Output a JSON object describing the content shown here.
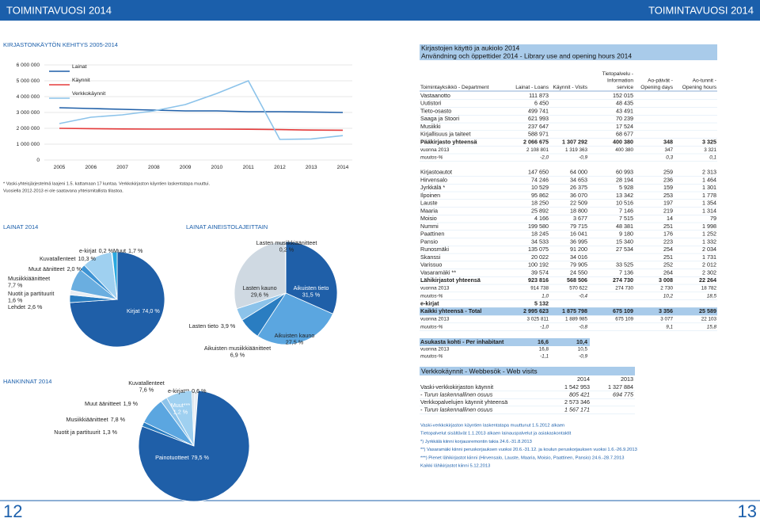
{
  "header": {
    "left": "TOIMINTAVUOSI 2014",
    "right": "TOIMINTAVUOSI 2014"
  },
  "pages": {
    "left": "12",
    "right": "13"
  },
  "chart_data": [
    {
      "type": "line",
      "title": "KIRJASTONKÄYTÖN KEHITYS 2005-2014",
      "categories": [
        "2005",
        "2006",
        "2007",
        "2008",
        "2009",
        "2010",
        "2011",
        "2012",
        "2013",
        "2014"
      ],
      "series": [
        {
          "name": "Lainat",
          "color": "#1f5fa8",
          "values": [
            3300000,
            3250000,
            3200000,
            3150000,
            3100000,
            3100000,
            3050000,
            3050000,
            3030000,
            3000000
          ]
        },
        {
          "name": "Käynnit",
          "color": "#e53b3b",
          "values": [
            2000000,
            1980000,
            1960000,
            1950000,
            1950000,
            1950000,
            1940000,
            1920000,
            1890000,
            1880000
          ]
        },
        {
          "name": "Verkkokäynnit",
          "color": "#8cc3ea",
          "values": [
            2300000,
            2700000,
            2850000,
            3100000,
            3500000,
            4200000,
            5000000,
            1300000,
            1330000,
            1540000
          ]
        }
      ],
      "ylim": [
        0,
        6000000
      ],
      "yticks": [
        0,
        {
          "value": 1000000,
          "label": "1 000 000"
        },
        {
          "value": 2000000,
          "label": "2 000 000"
        },
        {
          "value": 3000000,
          "label": "3 000 000"
        },
        {
          "value": 4000000,
          "label": "4 000 000"
        },
        {
          "value": 5000000,
          "label": "5 000 000"
        },
        {
          "value": 6000000,
          "label": "6 000 000"
        }
      ],
      "grid": true,
      "notes": [
        "* Vaski-yhteisjärjestelmä laajeni 1.5. kattamaan 17 kuntaa. Verkkokirjaston käyntien laskentatapa muuttui.",
        "Vuosiella 2012-2013 ei ole saatavana yhteismitallista tilastoa."
      ]
    },
    {
      "type": "pie",
      "title": "LAINAT 2014",
      "categories": [
        "Kirjat",
        "Lehdet",
        "Nuotit ja partituurit",
        "Musiikkiäänitteet",
        "Muut äänitteet",
        "Kuvatallenteet",
        "e-kirjat",
        "Muut"
      ],
      "values": [
        74.0,
        2.6,
        1.6,
        7.7,
        2.0,
        10.3,
        0.2,
        1.7
      ],
      "value_labels": [
        "74,0 %",
        "2,6 %",
        "1,6 %",
        "7,7 %",
        "2,0 %",
        "10,3 %",
        "0,2 %",
        "1,7 %"
      ],
      "colors": [
        "#1f5fa8",
        "#2a7dc1",
        "#e8eef4",
        "#6aaee0",
        "#3d93d4",
        "#9fd0f0",
        "#d0dce6",
        "#29a8e0"
      ]
    },
    {
      "type": "pie",
      "title": "LAINAT AINEISTOLAJEITTAIN",
      "categories": [
        "Aikuisten tieto",
        "Aikuisten kauno",
        "Aikuisten musiikkiäänitteet",
        "Lasten tieto",
        "Lasten kauno",
        "Lasten musiikkiäänitteet"
      ],
      "values": [
        31.5,
        27.5,
        6.9,
        3.9,
        29.6,
        0.2
      ],
      "value_labels": [
        "31,5 %",
        "27,5 %",
        "6,9 %",
        "3,9 %",
        "29,6 %",
        "0,2 %"
      ],
      "colors": [
        "#1f5fa8",
        "#5ba6e0",
        "#2a7dc1",
        "#8cc3ea",
        "#cfd9e2",
        "#eef2f5"
      ]
    },
    {
      "type": "pie",
      "title": "HANKINNAT 2014",
      "categories": [
        "Muut***",
        "Painotuotteet",
        "Nuotit ja partituurit",
        "Musiikkiäänitteet",
        "Muut äänitteet",
        "Kuvatallenteet",
        "e-kirjat**"
      ],
      "values": [
        1.2,
        79.5,
        1.3,
        7.8,
        1.9,
        7.6,
        0.6
      ],
      "value_labels": [
        "1,2 %",
        "79,5 %",
        "1,3 %",
        "7,8 %",
        "1,9 %",
        "7,6 %",
        "0,6 %"
      ],
      "colors": [
        "#e8eef4",
        "#1f5fa8",
        "#2a7dc1",
        "#5ba6e0",
        "#8cc3ea",
        "#9fd0f0",
        "#cfd9e2"
      ]
    }
  ],
  "table": {
    "title": "Kirjastojen käyttö ja aukiolo 2014",
    "subtitle": "Användning och öppettider 2014 - Library use and opening hours 2014",
    "columns": [
      [
        "Toimintayksikkö - Department"
      ],
      [
        "Lainat - Loans"
      ],
      [
        "Käynnit - Visits"
      ],
      [
        "Tietopalvelu -",
        "Information",
        "service"
      ],
      [
        "Ao-päivät -",
        "Opening days"
      ],
      [
        "Ao-tunnit -",
        "Opening hours"
      ]
    ],
    "rows": [
      [
        "Vastaanotto",
        "111 873",
        null,
        "152 015",
        null,
        null
      ],
      [
        "Uutistori",
        "6 450",
        null,
        "48 435",
        null,
        null
      ],
      [
        "Tieto-osasto",
        "499 741",
        null,
        "43 491",
        null,
        null
      ],
      [
        "Saaga ja Stoori",
        "621 993",
        null,
        "70 239",
        null,
        null
      ],
      [
        "Musiikki",
        "237 647",
        null,
        "17 524",
        null,
        null
      ],
      [
        "Kirjallisuus ja taiteet",
        "588 971",
        null,
        "68 677",
        null,
        null
      ],
      [
        "Pääkirjasto yhteensä",
        "2 066 675",
        "1 307 292",
        "400 380",
        "348",
        "3 325"
      ],
      [
        "vuonna 2013",
        "2 108 801",
        "1 319 363",
        "400 380",
        "347",
        "3 321"
      ],
      [
        "muutos-%",
        "-2,0",
        "-0,9",
        null,
        "0,3",
        "0,1"
      ],
      [
        "Kirjastoautot",
        "147 650",
        "64 000",
        "60 993",
        "259",
        "2 313"
      ],
      [
        "Hirvensalo",
        "74 246",
        "34 653",
        "28 194",
        "236",
        "1 464"
      ],
      [
        "Jyrkkälä *",
        "10 529",
        "26 375",
        "5 928",
        "159",
        "1 301"
      ],
      [
        "Ilpoinen",
        "95 862",
        "36 070",
        "13 342",
        "253",
        "1 778"
      ],
      [
        "Lauste",
        "18 250",
        "22 509",
        "10 516",
        "197",
        "1 354"
      ],
      [
        "Maaria",
        "25 892",
        "18 800",
        "7 146",
        "219",
        "1 314"
      ],
      [
        "Moisio",
        "4 166",
        "3 677",
        "7 515",
        "14",
        "79"
      ],
      [
        "Nummi",
        "199 580",
        "79 715",
        "48 381",
        "251",
        "1 998"
      ],
      [
        "Paattinen",
        "18 245",
        "16 041",
        "9 180",
        "176",
        "1 252"
      ],
      [
        "Pansio",
        "34 533",
        "36 995",
        "15 340",
        "223",
        "1 332"
      ],
      [
        "Runosmäki",
        "135 075",
        "91 200",
        "27 534",
        "254",
        "2 034"
      ],
      [
        "Skanssi",
        "20 022",
        "34 016",
        null,
        "251",
        "1 731"
      ],
      [
        "Varissuo",
        "100 192",
        "79 905",
        "33 525",
        "252",
        "2 012"
      ],
      [
        "Vasaramäki **",
        "39 574",
        "24 550",
        "7 136",
        "264",
        "2 302"
      ],
      [
        "Lähikirjastot yhteensä",
        "923 816",
        "568 506",
        "274 730",
        "3 008",
        "22 264"
      ],
      [
        "vuonna 2013",
        "914 738",
        "570 622",
        "274 730",
        "2 730",
        "18 782"
      ],
      [
        "muutos-%",
        "1,0",
        "-0,4",
        null,
        "10,2",
        "18,5"
      ],
      [
        "e-kirjat",
        "5 132",
        null,
        null,
        null,
        null
      ],
      [
        "Kaikki yhteensä - Total",
        "2 995 623",
        "1 875 798",
        "675 109",
        "3 356",
        "25 589"
      ],
      [
        "vuonna 2013",
        "3 025 811",
        "1 889 985",
        "675 109",
        "3 077",
        "22 103"
      ],
      [
        "muutos-%",
        "-1,0",
        "-0,8",
        null,
        "9,1",
        "15,8"
      ]
    ]
  },
  "per_inhabitant": {
    "rows": [
      [
        "Asukasta kohti - Per inhabitant",
        "16,6",
        "10,4"
      ],
      [
        "vuonna 2013",
        "16,8",
        "10,5"
      ],
      [
        "muutos-%",
        "-1,1",
        "-0,9"
      ]
    ]
  },
  "web_visits": {
    "title": "Verkkokäynnit - Webbesök - Web visits",
    "columns": [
      "2014",
      "2013"
    ],
    "rows": [
      [
        "Vaski-verkkokirjaston käynnit",
        "1 542 953",
        "1 327 884"
      ],
      [
        "- Turun laskennallinen osuus",
        "805 421",
        "694 775"
      ],
      [
        "Verkkopalvelujen käynnit yhteensä",
        "2 573 346",
        null
      ],
      [
        "- Turun laskennallinen osuus",
        "1 567 171",
        null
      ]
    ]
  },
  "footnotes": [
    "Vaski-verkkokirjaston käyntien laskentatapa muuttunut 1.5.2012 alkaen",
    "Tietopalvelut sisältävät 1.1.2013 alkaen lainauspalvelut ja asiakaskontaktit",
    "*) Jyrkkälä kiinni korjausremontin takia 24.6.-31.8.2013",
    "**) Vasaramäki kiinni peruskorjauksen vuoksi 20.6.-31.12. ja koulun peruskorjauksen vuoksi 1.6.-26.9.2013",
    "***) Pienet lähikirjastot kiinni (Hirvensalo, Lauste, Maaria, Moisio, Paattinen, Pansio) 24.6.-28.7.2013",
    "Kaikki lähikirjastot kiinni 5.12.2013"
  ]
}
